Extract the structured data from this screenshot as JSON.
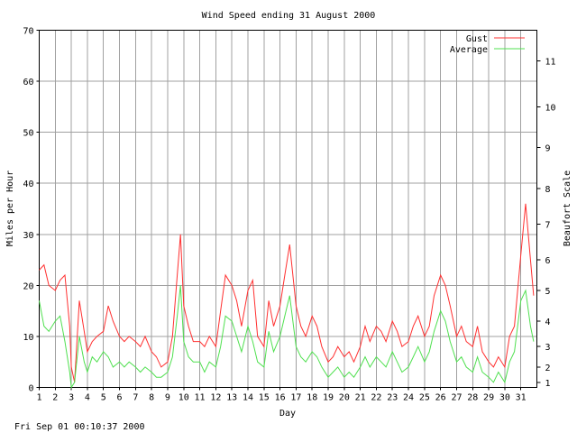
{
  "chart_data": {
    "type": "line",
    "title": "Wind Speed ending 31 August 2000",
    "xlabel": "Day",
    "ylabel": "Miles per Hour",
    "y2label": "Beaufort Scale",
    "timestamp": "Fri Sep 01 00:10:37 2000",
    "xlim": [
      1,
      32
    ],
    "ylim": [
      0,
      70
    ],
    "x_ticks": [
      "1",
      "2",
      "3",
      "4",
      "5",
      "6",
      "7",
      "8",
      "9",
      "10",
      "11",
      "12",
      "13",
      "14",
      "15",
      "16",
      "17",
      "18",
      "19",
      "20",
      "21",
      "22",
      "23",
      "24",
      "25",
      "26",
      "27",
      "28",
      "29",
      "30",
      "31"
    ],
    "y_ticks": [
      0,
      10,
      20,
      30,
      40,
      50,
      60,
      70
    ],
    "beaufort_ticks": [
      {
        "label": "1",
        "mph": 1
      },
      {
        "label": "2",
        "mph": 4
      },
      {
        "label": "3",
        "mph": 8
      },
      {
        "label": "4",
        "mph": 13
      },
      {
        "label": "5",
        "mph": 19
      },
      {
        "label": "6",
        "mph": 25
      },
      {
        "label": "7",
        "mph": 32
      },
      {
        "label": "8",
        "mph": 39
      },
      {
        "label": "9",
        "mph": 47
      },
      {
        "label": "10",
        "mph": 55
      },
      {
        "label": "11",
        "mph": 64
      }
    ],
    "grid": true,
    "legend_position": "top-right",
    "series": [
      {
        "name": "Gust",
        "color": "#ff3030",
        "points": [
          [
            1.0,
            23
          ],
          [
            1.3,
            24
          ],
          [
            1.6,
            20
          ],
          [
            2.0,
            19
          ],
          [
            2.3,
            21
          ],
          [
            2.6,
            22
          ],
          [
            2.9,
            12
          ],
          [
            3.0,
            4
          ],
          [
            3.2,
            1
          ],
          [
            3.5,
            17
          ],
          [
            3.8,
            11
          ],
          [
            4.0,
            7
          ],
          [
            4.3,
            9
          ],
          [
            4.6,
            10
          ],
          [
            5.0,
            11
          ],
          [
            5.3,
            16
          ],
          [
            5.6,
            13
          ],
          [
            6.0,
            10
          ],
          [
            6.3,
            9
          ],
          [
            6.6,
            10
          ],
          [
            7.0,
            9
          ],
          [
            7.3,
            8
          ],
          [
            7.6,
            10
          ],
          [
            8.0,
            7
          ],
          [
            8.3,
            6
          ],
          [
            8.6,
            4
          ],
          [
            9.0,
            5
          ],
          [
            9.3,
            10
          ],
          [
            9.6,
            22
          ],
          [
            9.8,
            30
          ],
          [
            10.0,
            16
          ],
          [
            10.3,
            12
          ],
          [
            10.6,
            9
          ],
          [
            11.0,
            9
          ],
          [
            11.3,
            8
          ],
          [
            11.6,
            10
          ],
          [
            12.0,
            8
          ],
          [
            12.3,
            15
          ],
          [
            12.6,
            22
          ],
          [
            13.0,
            20
          ],
          [
            13.3,
            17
          ],
          [
            13.6,
            12
          ],
          [
            14.0,
            19
          ],
          [
            14.3,
            21
          ],
          [
            14.6,
            10
          ],
          [
            15.0,
            8
          ],
          [
            15.3,
            17
          ],
          [
            15.6,
            12
          ],
          [
            16.0,
            16
          ],
          [
            16.3,
            22
          ],
          [
            16.6,
            28
          ],
          [
            17.0,
            16
          ],
          [
            17.3,
            12
          ],
          [
            17.6,
            10
          ],
          [
            18.0,
            14
          ],
          [
            18.3,
            12
          ],
          [
            18.6,
            8
          ],
          [
            19.0,
            5
          ],
          [
            19.3,
            6
          ],
          [
            19.6,
            8
          ],
          [
            20.0,
            6
          ],
          [
            20.3,
            7
          ],
          [
            20.6,
            5
          ],
          [
            21.0,
            8
          ],
          [
            21.3,
            12
          ],
          [
            21.6,
            9
          ],
          [
            22.0,
            12
          ],
          [
            22.3,
            11
          ],
          [
            22.6,
            9
          ],
          [
            23.0,
            13
          ],
          [
            23.3,
            11
          ],
          [
            23.6,
            8
          ],
          [
            24.0,
            9
          ],
          [
            24.3,
            12
          ],
          [
            24.6,
            14
          ],
          [
            25.0,
            10
          ],
          [
            25.3,
            12
          ],
          [
            25.6,
            18
          ],
          [
            26.0,
            22
          ],
          [
            26.3,
            20
          ],
          [
            26.6,
            16
          ],
          [
            27.0,
            10
          ],
          [
            27.3,
            12
          ],
          [
            27.6,
            9
          ],
          [
            28.0,
            8
          ],
          [
            28.3,
            12
          ],
          [
            28.6,
            7
          ],
          [
            29.0,
            5
          ],
          [
            29.3,
            4
          ],
          [
            29.6,
            6
          ],
          [
            30.0,
            4
          ],
          [
            30.3,
            10
          ],
          [
            30.6,
            12
          ],
          [
            31.0,
            26
          ],
          [
            31.3,
            36
          ],
          [
            31.6,
            25
          ],
          [
            31.8,
            18
          ]
        ]
      },
      {
        "name": "Average",
        "color": "#50e050",
        "points": [
          [
            1.0,
            17
          ],
          [
            1.3,
            12
          ],
          [
            1.6,
            11
          ],
          [
            2.0,
            13
          ],
          [
            2.3,
            14
          ],
          [
            2.6,
            9
          ],
          [
            2.9,
            3
          ],
          [
            3.0,
            0
          ],
          [
            3.2,
            1
          ],
          [
            3.5,
            10
          ],
          [
            3.8,
            5
          ],
          [
            4.0,
            3
          ],
          [
            4.3,
            6
          ],
          [
            4.6,
            5
          ],
          [
            5.0,
            7
          ],
          [
            5.3,
            6
          ],
          [
            5.6,
            4
          ],
          [
            6.0,
            5
          ],
          [
            6.3,
            4
          ],
          [
            6.6,
            5
          ],
          [
            7.0,
            4
          ],
          [
            7.3,
            3
          ],
          [
            7.6,
            4
          ],
          [
            8.0,
            3
          ],
          [
            8.3,
            2
          ],
          [
            8.6,
            2
          ],
          [
            9.0,
            3
          ],
          [
            9.3,
            6
          ],
          [
            9.6,
            14
          ],
          [
            9.8,
            20
          ],
          [
            10.0,
            9
          ],
          [
            10.3,
            6
          ],
          [
            10.6,
            5
          ],
          [
            11.0,
            5
          ],
          [
            11.3,
            3
          ],
          [
            11.6,
            5
          ],
          [
            12.0,
            4
          ],
          [
            12.3,
            8
          ],
          [
            12.6,
            14
          ],
          [
            13.0,
            13
          ],
          [
            13.3,
            10
          ],
          [
            13.6,
            7
          ],
          [
            14.0,
            12
          ],
          [
            14.3,
            9
          ],
          [
            14.6,
            5
          ],
          [
            15.0,
            4
          ],
          [
            15.3,
            11
          ],
          [
            15.6,
            7
          ],
          [
            16.0,
            10
          ],
          [
            16.3,
            14
          ],
          [
            16.6,
            18
          ],
          [
            17.0,
            8
          ],
          [
            17.3,
            6
          ],
          [
            17.6,
            5
          ],
          [
            18.0,
            7
          ],
          [
            18.3,
            6
          ],
          [
            18.6,
            4
          ],
          [
            19.0,
            2
          ],
          [
            19.3,
            3
          ],
          [
            19.6,
            4
          ],
          [
            20.0,
            2
          ],
          [
            20.3,
            3
          ],
          [
            20.6,
            2
          ],
          [
            21.0,
            4
          ],
          [
            21.3,
            6
          ],
          [
            21.6,
            4
          ],
          [
            22.0,
            6
          ],
          [
            22.3,
            5
          ],
          [
            22.6,
            4
          ],
          [
            23.0,
            7
          ],
          [
            23.3,
            5
          ],
          [
            23.6,
            3
          ],
          [
            24.0,
            4
          ],
          [
            24.3,
            6
          ],
          [
            24.6,
            8
          ],
          [
            25.0,
            5
          ],
          [
            25.3,
            7
          ],
          [
            25.6,
            11
          ],
          [
            26.0,
            15
          ],
          [
            26.3,
            13
          ],
          [
            26.6,
            9
          ],
          [
            27.0,
            5
          ],
          [
            27.3,
            6
          ],
          [
            27.6,
            4
          ],
          [
            28.0,
            3
          ],
          [
            28.3,
            6
          ],
          [
            28.6,
            3
          ],
          [
            29.0,
            2
          ],
          [
            29.3,
            1
          ],
          [
            29.6,
            3
          ],
          [
            30.0,
            1
          ],
          [
            30.3,
            5
          ],
          [
            30.6,
            7
          ],
          [
            31.0,
            17
          ],
          [
            31.3,
            19
          ],
          [
            31.6,
            12
          ],
          [
            31.8,
            9
          ]
        ]
      }
    ]
  }
}
